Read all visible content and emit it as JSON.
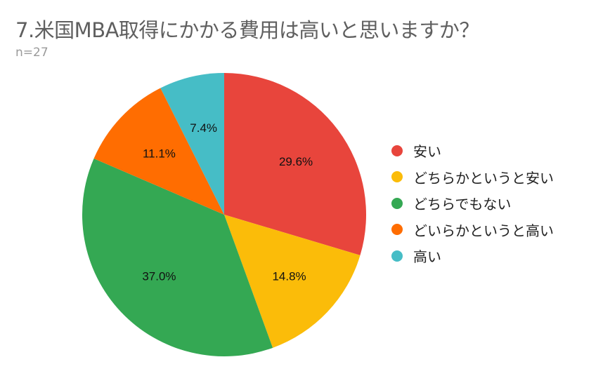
{
  "header": {
    "title": "7.米国MBA取得にかかる費用は高いと思いますか？",
    "subtitle": "n=27"
  },
  "legend": {
    "items": [
      {
        "label": "安い",
        "color": "#e8453c"
      },
      {
        "label": "どちらかというと安い",
        "color": "#fbbc09"
      },
      {
        "label": "どちらでもない",
        "color": "#34a853"
      },
      {
        "label": "どいらかというと高い",
        "color": "#ff6d01"
      },
      {
        "label": "高い",
        "color": "#46bdc6"
      }
    ]
  },
  "chart_data": {
    "type": "pie",
    "title": "7.米国MBA取得にかかる費用は高いと思いますか？",
    "subtitle": "n=27",
    "categories": [
      "安い",
      "どちらかというと安い",
      "どちらでもない",
      "どいらかというと高い",
      "高い"
    ],
    "values": [
      29.6,
      14.8,
      37.0,
      11.1,
      7.4
    ],
    "counts": [
      8,
      4,
      10,
      3,
      2
    ],
    "value_labels": [
      "29.6%",
      "14.8%",
      "37.0%",
      "11.1%",
      "7.4%"
    ],
    "colors": [
      "#e8453c",
      "#fbbc09",
      "#34a853",
      "#ff6d01",
      "#46bdc6"
    ],
    "start_angle": "12 o'clock",
    "direction": "clockwise",
    "legend_position": "right"
  }
}
